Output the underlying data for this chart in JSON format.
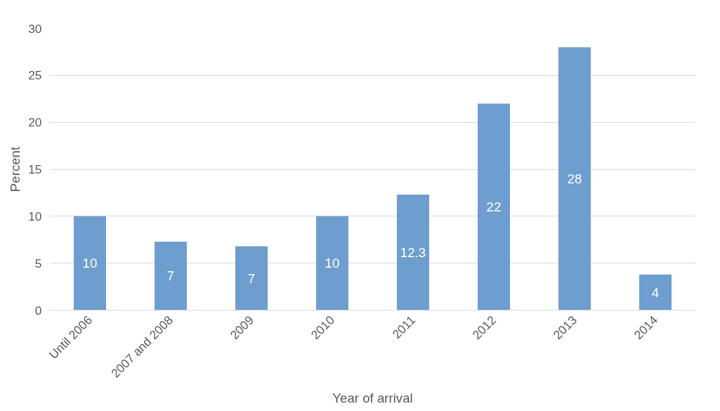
{
  "chart_data": {
    "type": "bar",
    "xlabel": "Year of arrival",
    "ylabel": "Percent",
    "categories": [
      "Until 2006",
      "2007 and 2008",
      "2009",
      "2010",
      "2011",
      "2012",
      "2013",
      "2014"
    ],
    "values": [
      10,
      7.3,
      6.8,
      10,
      12.3,
      22,
      28,
      3.8
    ],
    "value_labels": [
      "10",
      "7",
      "7",
      "10",
      "12.3",
      "22",
      "28",
      "4"
    ],
    "color": "#6e9ecf",
    "ylim": [
      0,
      30
    ],
    "yticks": [
      0,
      5,
      10,
      15,
      20,
      25,
      30
    ],
    "grid": "y"
  }
}
